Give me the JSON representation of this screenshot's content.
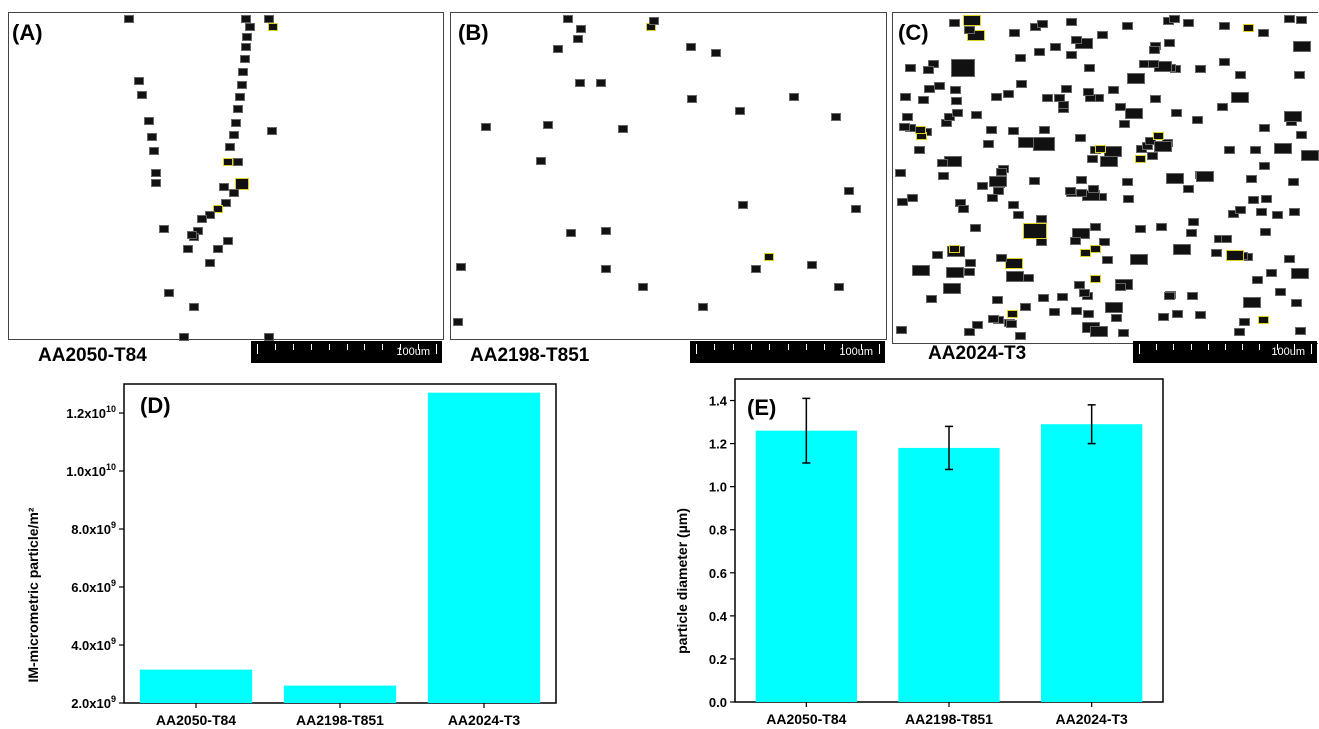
{
  "panels": {
    "A": {
      "letter": "(A)",
      "alloy": "AA2050-T84",
      "scale": "100um"
    },
    "B": {
      "letter": "(B)",
      "alloy": "AA2198-T851",
      "scale": "100um"
    },
    "C": {
      "letter": "(C)",
      "alloy": "AA2024-T3",
      "scale": "100um"
    }
  },
  "chart_data": [
    {
      "panel": "(D)",
      "type": "bar",
      "categories": [
        "AA2050-T84",
        "AA2198-T851",
        "AA2024-T3"
      ],
      "values": [
        3150000000.0,
        2600000000.0,
        12700000000.0
      ],
      "ylabel": "IM-micrometric particle/m²",
      "ylim": [
        2000000000.0,
        13000000000.0
      ],
      "yticks": [
        {
          "value": 2000000000.0,
          "mant": "2.0x10",
          "exp": "9"
        },
        {
          "value": 4000000000.0,
          "mant": "4.0x10",
          "exp": "9"
        },
        {
          "value": 6000000000.0,
          "mant": "6.0x10",
          "exp": "9"
        },
        {
          "value": 8000000000.0,
          "mant": "8.0x10",
          "exp": "9"
        },
        {
          "value": 10000000000.0,
          "mant": "1.0x10",
          "exp": "10"
        },
        {
          "value": 12000000000.0,
          "mant": "1.2x10",
          "exp": "10"
        }
      ],
      "bar_color": "#00ffff"
    },
    {
      "panel": "(E)",
      "type": "bar",
      "categories": [
        "AA2050-T84",
        "AA2198-T851",
        "AA2024-T3"
      ],
      "values": [
        1.26,
        1.18,
        1.29
      ],
      "errors": [
        0.15,
        0.1,
        0.09
      ],
      "ylabel": "particle diameter (µm)",
      "ylim": [
        0.0,
        1.5
      ],
      "yticks": [
        "0.0",
        "0.2",
        "0.4",
        "0.6",
        "0.8",
        "1.0",
        "1.2",
        "1.4"
      ],
      "bar_color": "#00ffff"
    }
  ]
}
